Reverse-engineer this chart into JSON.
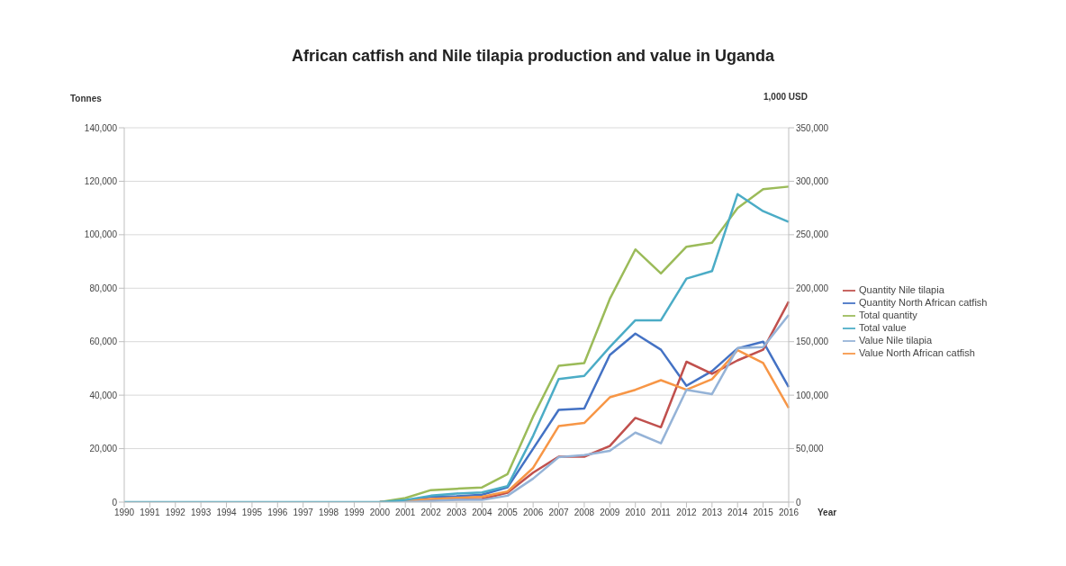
{
  "chart_data": {
    "type": "line",
    "title": "African catfish and Nile tilapia production and value in Uganda",
    "xlabel": "Year",
    "ylabel": "Tonnes",
    "y2label": "1,000 USD",
    "categories": [
      "1990",
      "1991",
      "1992",
      "1993",
      "1994",
      "1995",
      "1996",
      "1997",
      "1998",
      "1999",
      "2000",
      "2001",
      "2002",
      "2003",
      "2004",
      "2005",
      "2006",
      "2007",
      "2008",
      "2009",
      "2010",
      "2011",
      "2012",
      "2013",
      "2014",
      "2015",
      "2016"
    ],
    "series": [
      {
        "name": "Quantity North African catfish",
        "color": "#4472c4",
        "values": [
          null,
          null,
          null,
          null,
          null,
          null,
          null,
          null,
          null,
          null,
          0,
          500,
          2000,
          2200,
          2800,
          5500,
          20000,
          34500,
          35000,
          55000,
          63000,
          57000,
          43500,
          49000,
          57500,
          60000,
          43000
        ]
      },
      {
        "name": "Quantity Nile tilapia",
        "color": "#c0504d",
        "values": [
          null,
          null,
          null,
          null,
          null,
          null,
          null,
          null,
          null,
          null,
          0,
          200,
          800,
          1000,
          1200,
          3500,
          11000,
          17000,
          17000,
          21000,
          31500,
          28000,
          52500,
          48000,
          53000,
          57000,
          75000
        ]
      },
      {
        "name": "Total quantity",
        "color": "#9bbb59",
        "values": [
          null,
          null,
          null,
          null,
          null,
          null,
          null,
          null,
          null,
          null,
          0,
          1500,
          4500,
          5000,
          5500,
          10500,
          32000,
          51000,
          52000,
          76000,
          94500,
          85500,
          95500,
          97000,
          110000,
          117000,
          118000
        ]
      },
      {
        "name": "Value North African catfish",
        "color": "#f79646",
        "axis": "y2",
        "values": [
          null,
          null,
          null,
          null,
          null,
          null,
          null,
          null,
          null,
          null,
          0,
          1000,
          3000,
          4000,
          5000,
          10000,
          32000,
          71000,
          74000,
          98000,
          105000,
          114000,
          105000,
          115000,
          142000,
          130000,
          88000
        ]
      },
      {
        "name": "Value Nile tilapia",
        "color": "#95b3d7",
        "axis": "y2",
        "values": [
          null,
          null,
          null,
          null,
          null,
          null,
          null,
          null,
          null,
          null,
          0,
          0,
          1000,
          2000,
          2000,
          6000,
          22000,
          42000,
          44000,
          48000,
          65000,
          55000,
          105000,
          101000,
          144000,
          145000,
          175000
        ]
      },
      {
        "name": "Total value",
        "color": "#4bacc6",
        "axis": "y2",
        "values": [
          0,
          0,
          0,
          0,
          0,
          0,
          0,
          0,
          0,
          0,
          0,
          2000,
          6000,
          8000,
          9000,
          15000,
          62000,
          115000,
          118000,
          145000,
          170000,
          170000,
          209000,
          216000,
          288000,
          272000,
          262000
        ]
      }
    ],
    "ylim": [
      0,
      140000
    ],
    "yticks": [
      0,
      {
        "value": 20000,
        "label": "20,000"
      },
      {
        "value": 40000,
        "label": "40,000"
      },
      {
        "value": 60000,
        "label": "60,000"
      },
      {
        "value": 80000,
        "label": "80,000"
      },
      {
        "value": 100000,
        "label": "100,000"
      },
      {
        "value": 120000,
        "label": "120,000"
      },
      {
        "value": 140000,
        "label": "140,000"
      }
    ],
    "y2lim": [
      0,
      350000
    ],
    "y2ticks": [
      0,
      {
        "value": 50000,
        "label": "50,000"
      },
      {
        "value": 100000,
        "label": "100,000"
      },
      {
        "value": 150000,
        "label": "150,000"
      },
      {
        "value": 200000,
        "label": "200,000"
      },
      {
        "value": 250000,
        "label": "250,000"
      },
      {
        "value": 300000,
        "label": "300,000"
      },
      {
        "value": 350000,
        "label": "350,000"
      }
    ],
    "grid": "y",
    "legend": "right",
    "marker": "none",
    "line_style": "solid"
  }
}
